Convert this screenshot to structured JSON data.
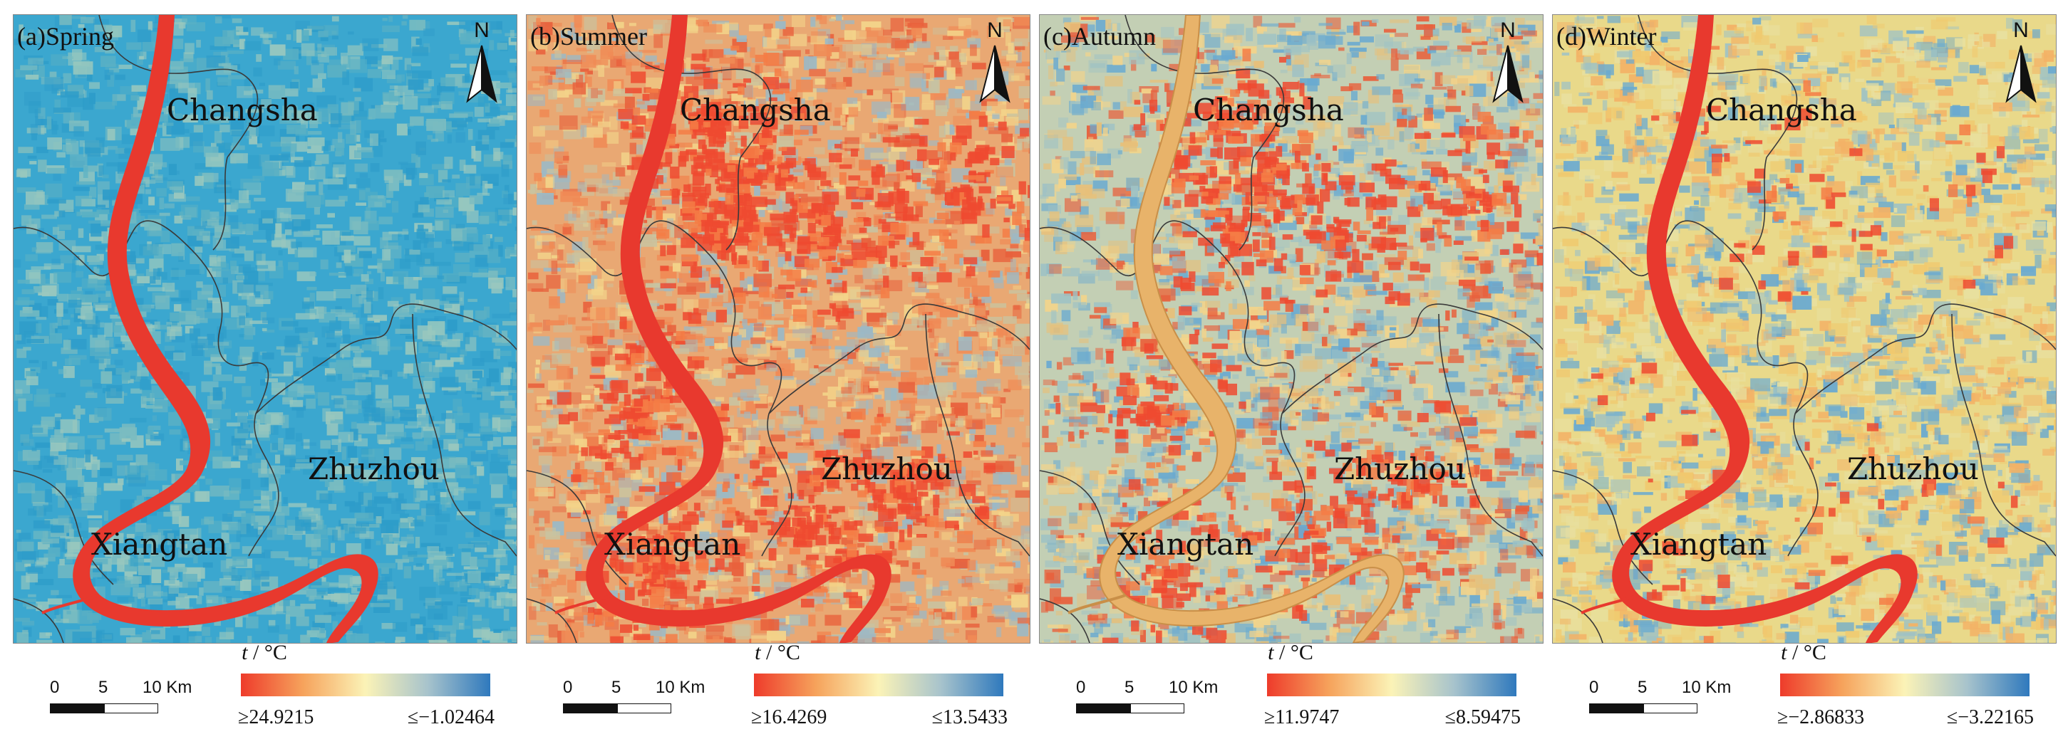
{
  "panels": [
    {
      "label": "(a)Spring",
      "cities": {
        "changsha": "Changsha",
        "zhuzhou": "Zhuzhou",
        "xiangtan": "Xiangtan"
      },
      "north": "N",
      "legend_title_var": "t",
      "legend_title_unit": " / °C",
      "scale_labels": [
        "0",
        "5",
        "10 Km"
      ],
      "colorbar_min_label": "≥24.9215",
      "colorbar_max_label": "≤−1.02464",
      "base_color": "#3ba7cf",
      "speckle_colors": [
        "#5ab0c4",
        "#7bbcc0",
        "#2e9cc9",
        "#9ac8be"
      ],
      "hot_fraction": 0.0
    },
    {
      "label": "(b)Summer",
      "cities": {
        "changsha": "Changsha",
        "zhuzhou": "Zhuzhou",
        "xiangtan": "Xiangtan"
      },
      "north": "N",
      "legend_title_var": "t",
      "legend_title_unit": " / °C",
      "scale_labels": [
        "0",
        "5",
        "10 Km"
      ],
      "colorbar_min_label": "≥16.4269",
      "colorbar_max_label": "≤13.5433",
      "base_color": "#e9a873",
      "speckle_colors": [
        "#e8603c",
        "#f08a55",
        "#9bb9c6",
        "#f3d48a",
        "#c9c3a0"
      ],
      "hot_fraction": 0.45
    },
    {
      "label": "(c)Autumn",
      "cities": {
        "changsha": "Changsha",
        "zhuzhou": "Zhuzhou",
        "xiangtan": "Xiangtan"
      },
      "north": "N",
      "legend_title_var": "t",
      "legend_title_unit": " / °C",
      "scale_labels": [
        "0",
        "5",
        "10 Km"
      ],
      "colorbar_min_label": "≥11.9747",
      "colorbar_max_label": "≤8.59475",
      "base_color": "#c3cfb4",
      "speckle_colors": [
        "#6aaad0",
        "#f3d48a",
        "#e8603c",
        "#9fc2c4",
        "#e7c07a"
      ],
      "hot_fraction": 0.3
    },
    {
      "label": "(d)Winter",
      "cities": {
        "changsha": "Changsha",
        "zhuzhou": "Zhuzhou",
        "xiangtan": "Xiangtan"
      },
      "north": "N",
      "legend_title_var": "t",
      "legend_title_unit": " / °C",
      "scale_labels": [
        "0",
        "5",
        "10 Km"
      ],
      "colorbar_min_label": "≥−2.86833",
      "colorbar_max_label": "≤−3.22165",
      "base_color": "#e9d98a",
      "speckle_colors": [
        "#9fc2c4",
        "#f0c96f",
        "#6aaad0",
        "#e8e0a0",
        "#f3b266"
      ],
      "hot_fraction": 0.05
    }
  ],
  "colors": {
    "river": "#e8392e",
    "boundary": "#3a3a3a",
    "colorbar_stops": [
      "#ee3b2b",
      "#f6a35c",
      "#fbf3b7",
      "#a7c3cc",
      "#2f79bd"
    ]
  }
}
